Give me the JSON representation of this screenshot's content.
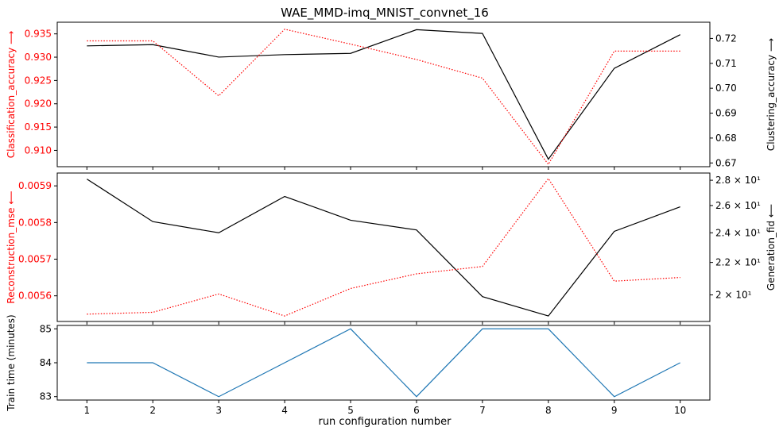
{
  "chart_data": {
    "type": "line",
    "title": "WAE_MMD-imq_MNIST_convnet_16",
    "xlabel": "run configuration number",
    "x": [
      1,
      2,
      3,
      4,
      5,
      6,
      7,
      8,
      9,
      10
    ],
    "xlim": [
      0.55,
      10.45
    ],
    "accent_color": "#ff0000",
    "panels": [
      {
        "left": {
          "name": "Classification_accuracy",
          "label": "Classification_accuracy",
          "arrow": "⟶",
          "color": "#ff0000",
          "style": "dotted",
          "values": [
            0.9335,
            0.9335,
            0.9217,
            0.936,
            0.9328,
            0.9295,
            0.9255,
            0.907,
            0.9313,
            0.9313
          ],
          "ylim": [
            0.9065,
            0.9375
          ],
          "ticks": [
            0.91,
            0.915,
            0.92,
            0.925,
            0.93,
            0.935
          ],
          "tick_labels": [
            "0.910",
            "0.915",
            "0.920",
            "0.925",
            "0.930",
            "0.935"
          ]
        },
        "right": {
          "name": "Clustering_accuracy",
          "label": "Clustering_accuracy",
          "arrow": "⟶",
          "color": "#000000",
          "style": "solid",
          "values": [
            0.717,
            0.7175,
            0.7125,
            0.7135,
            0.714,
            0.7235,
            0.722,
            0.6715,
            0.708,
            0.7215
          ],
          "ylim": [
            0.6685,
            0.7265
          ],
          "ticks": [
            0.67,
            0.68,
            0.69,
            0.7,
            0.71,
            0.72
          ],
          "tick_labels": [
            "0.67",
            "0.68",
            "0.69",
            "0.70",
            "0.71",
            "0.72"
          ]
        }
      },
      {
        "left": {
          "name": "Reconstruction_mse",
          "label": "Reconstruction_mse",
          "arrow": "⟵",
          "color": "#ff0000",
          "style": "dotted",
          "values": [
            0.00555,
            0.005555,
            0.005605,
            0.005545,
            0.00562,
            0.00566,
            0.00568,
            0.00592,
            0.00564,
            0.00565
          ],
          "ylim": [
            0.00553,
            0.005935
          ],
          "ticks": [
            0.0056,
            0.0057,
            0.0058,
            0.0059
          ],
          "tick_labels": [
            "0.0056",
            "0.0057",
            "0.0058",
            "0.0059"
          ]
        },
        "right": {
          "name": "Generation_fid",
          "label": "Generation_fid",
          "arrow": "⟵",
          "color": "#000000",
          "style": "solid",
          "scale": "log",
          "values": [
            28.1,
            24.8,
            24.0,
            26.7,
            24.9,
            24.2,
            19.9,
            18.8,
            24.1,
            25.9
          ],
          "ylim": [
            18.5,
            28.6
          ],
          "ticks": [
            20,
            22,
            24,
            26,
            28
          ],
          "tick_labels": [
            "2 × 10¹",
            "2.2 × 10¹",
            "2.4 × 10¹",
            "2.6 × 10¹",
            "2.8 × 10¹"
          ]
        }
      },
      {
        "left": {
          "name": "Train time",
          "label": "Train time (minutes)",
          "arrow": "",
          "color": "#1f77b4",
          "style": "solid",
          "values": [
            84,
            84,
            83,
            84,
            85,
            83,
            85,
            85,
            83,
            84
          ],
          "ylim": [
            82.9,
            85.1
          ],
          "ticks": [
            83,
            84,
            85
          ],
          "tick_labels": [
            "83",
            "84",
            "85"
          ]
        }
      }
    ],
    "x_tick_labels": [
      "1",
      "2",
      "3",
      "4",
      "5",
      "6",
      "7",
      "8",
      "9",
      "10"
    ],
    "grid": false,
    "legend": "none"
  }
}
